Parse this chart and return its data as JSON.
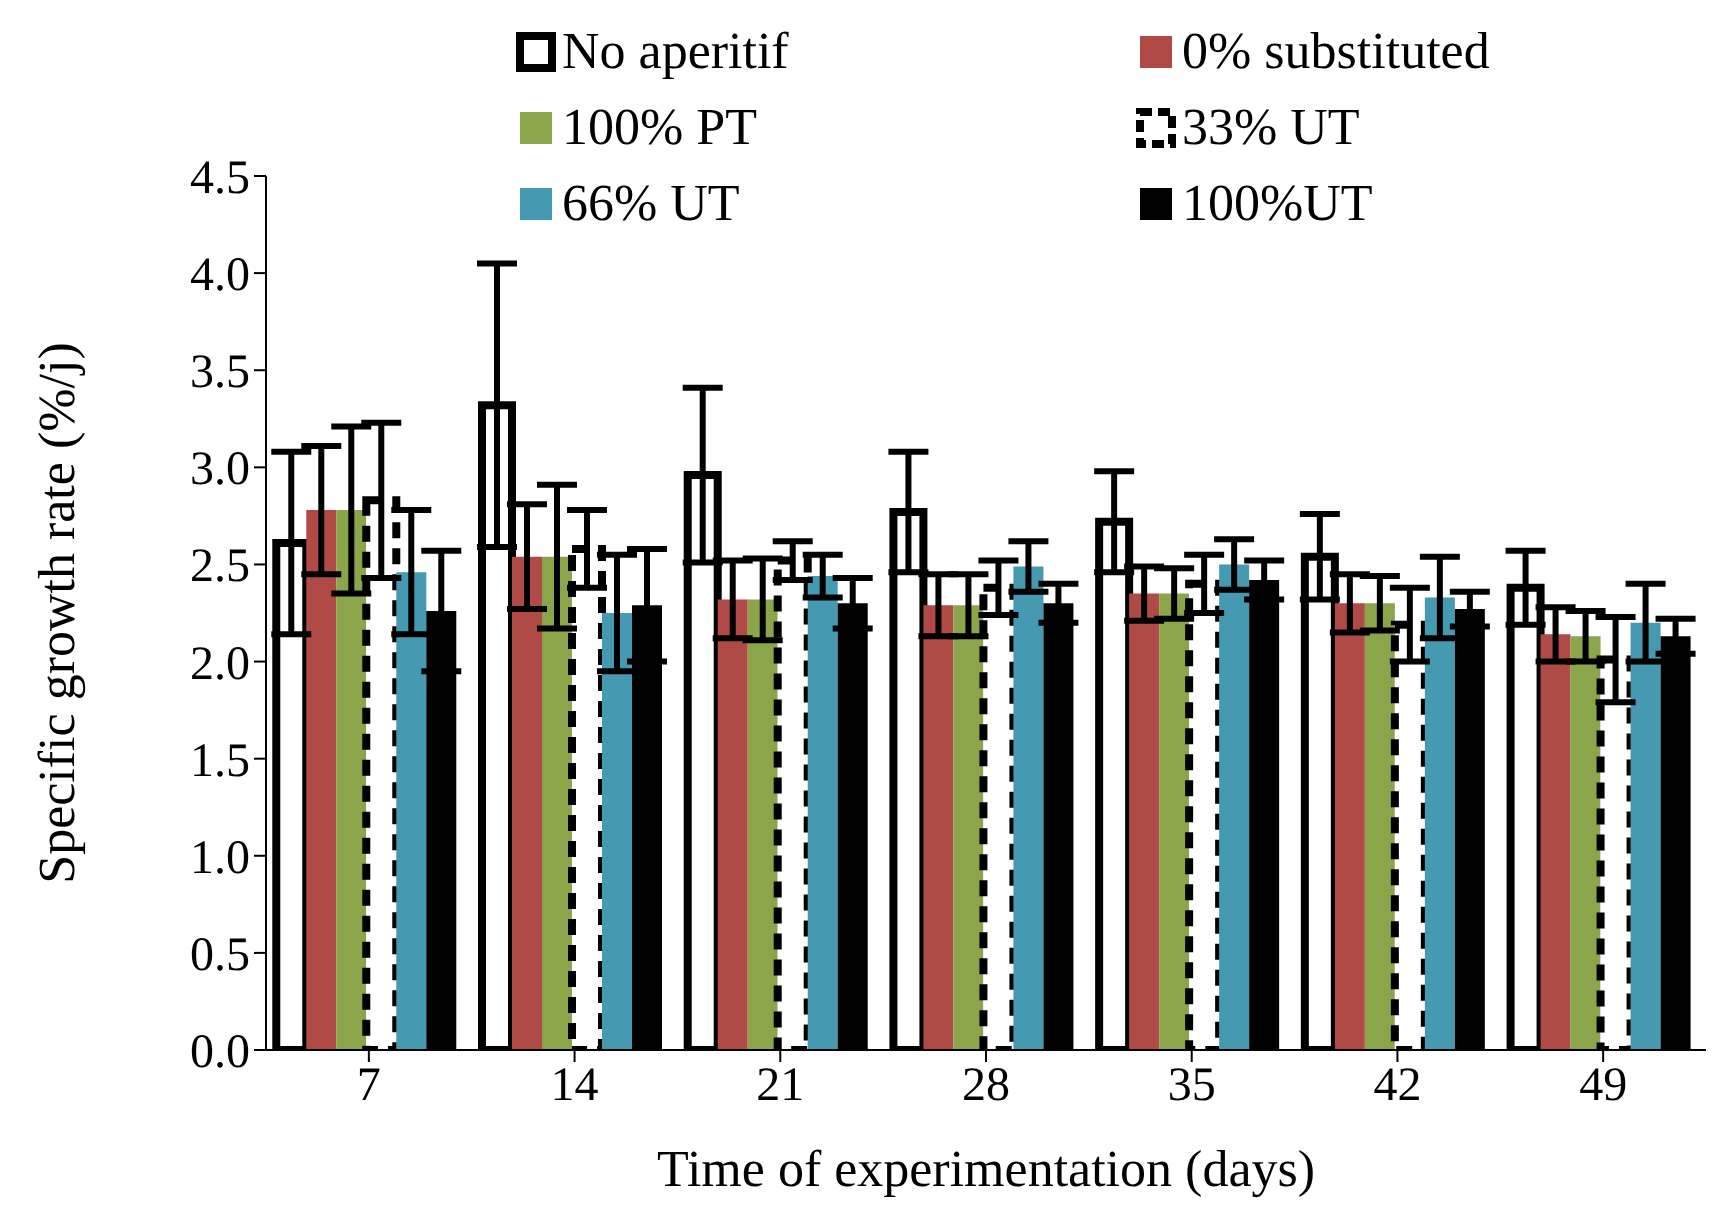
{
  "chart_data": {
    "type": "bar",
    "xlabel": "Time of experimentation (days)",
    "ylabel": "Specific growth rate (%/j)",
    "categories": [
      "7",
      "14",
      "21",
      "28",
      "35",
      "42",
      "49"
    ],
    "ylim": [
      0,
      4.5
    ],
    "yticks": [
      {
        "value": 0,
        "label": "0.0"
      },
      {
        "value": 0.5,
        "label": "0.5"
      },
      {
        "value": 1,
        "label": "1.0"
      },
      {
        "value": 1.5,
        "label": "1.5"
      },
      {
        "value": 2,
        "label": "2.0"
      },
      {
        "value": 2.5,
        "label": "2.5"
      },
      {
        "value": 3,
        "label": "3.0"
      },
      {
        "value": 3.5,
        "label": "3.5"
      },
      {
        "value": 4,
        "label": "4.0"
      },
      {
        "value": 4.5,
        "label": "4.5"
      }
    ],
    "grid": false,
    "legend": "top",
    "series": [
      {
        "name": "No aperitif",
        "color": "#ffffff",
        "values": [
          2.61,
          3.32,
          2.96,
          2.77,
          2.72,
          2.54,
          2.38
        ],
        "errors": [
          0.47,
          0.73,
          0.45,
          0.31,
          0.26,
          0.22,
          0.19
        ]
      },
      {
        "name": "0% substituted",
        "color": "#b04a47",
        "values": [
          2.78,
          2.54,
          2.32,
          2.29,
          2.35,
          2.3,
          2.14
        ],
        "errors": [
          0.33,
          0.27,
          0.2,
          0.16,
          0.14,
          0.15,
          0.14
        ]
      },
      {
        "name": "100% PT",
        "color": "#8ba64a",
        "values": [
          2.78,
          2.54,
          2.32,
          2.29,
          2.35,
          2.3,
          2.13
        ],
        "errors": [
          0.43,
          0.37,
          0.21,
          0.16,
          0.13,
          0.14,
          0.13
        ]
      },
      {
        "name": "33% UT",
        "color": "#ffffff",
        "line_style": "dashed",
        "values": [
          2.83,
          2.58,
          2.52,
          2.38,
          2.4,
          2.19,
          2.01
        ],
        "errors": [
          0.4,
          0.2,
          0.1,
          0.14,
          0.15,
          0.19,
          0.22
        ]
      },
      {
        "name": "66% UT",
        "color": "#4599b0",
        "values": [
          2.46,
          2.25,
          2.44,
          2.49,
          2.5,
          2.33,
          2.2
        ],
        "errors": [
          0.32,
          0.3,
          0.11,
          0.13,
          0.13,
          0.21,
          0.2
        ]
      },
      {
        "name": "100%UT",
        "color": "#000000",
        "values": [
          2.26,
          2.29,
          2.3,
          2.3,
          2.42,
          2.27,
          2.13
        ],
        "errors": [
          0.31,
          0.29,
          0.13,
          0.1,
          0.1,
          0.09,
          0.09
        ]
      }
    ]
  }
}
